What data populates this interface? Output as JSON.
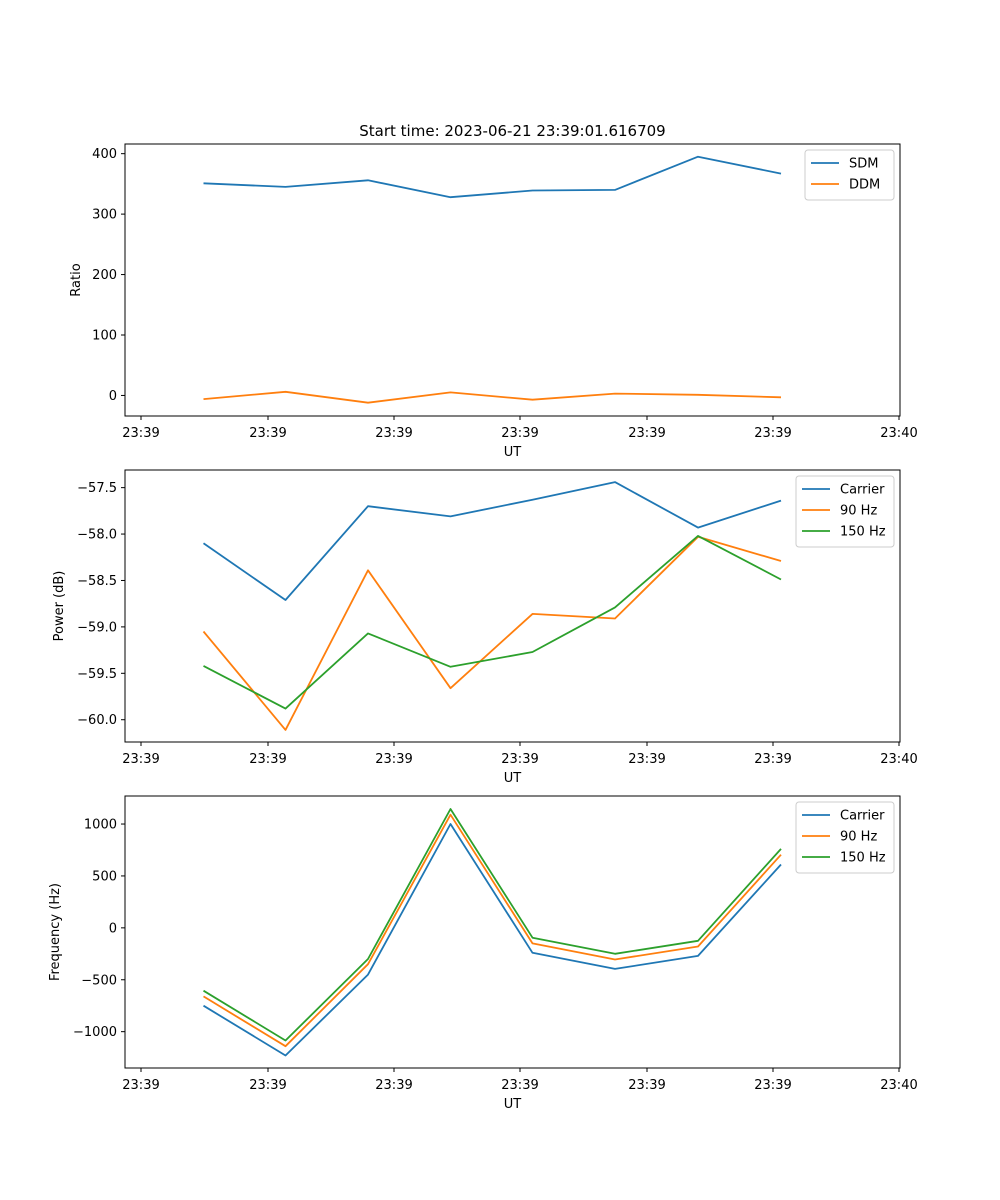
{
  "title": "Start time: 2023-06-21 23:39:01.616709",
  "chart_data": [
    {
      "type": "line",
      "xlabel": "UT",
      "ylabel": "Ratio",
      "ylim": [
        -34,
        416
      ],
      "yticks": [
        0,
        100,
        200,
        300,
        400
      ],
      "xticklabels": [
        "23:39",
        "23:39",
        "23:39",
        "23:39",
        "23:39",
        "23:39",
        "23:39",
        "23:40"
      ],
      "legend_position": "top-right",
      "series": [
        {
          "name": "SDM",
          "color": "#1f77b4",
          "values": [
            351,
            345,
            356,
            328,
            339,
            340,
            395,
            367
          ]
        },
        {
          "name": "DDM",
          "color": "#ff7f0e",
          "values": [
            -6,
            6,
            -12,
            5,
            -7,
            3,
            1,
            -3
          ]
        }
      ]
    },
    {
      "type": "line",
      "xlabel": "UT",
      "ylabel": "Power (dB)",
      "ylim": [
        -60.24,
        -57.31
      ],
      "yticks": [
        -57.5,
        -58.0,
        -58.5,
        -59.0,
        -59.5,
        -60.0
      ],
      "yticklabels": [
        "−57.5",
        "−58.0",
        "−58.5",
        "−59.0",
        "−59.5",
        "−60.0"
      ],
      "xticklabels": [
        "23:39",
        "23:39",
        "23:39",
        "23:39",
        "23:39",
        "23:39",
        "23:39",
        "23:40"
      ],
      "legend_position": "top-right",
      "series": [
        {
          "name": "Carrier",
          "color": "#1f77b4",
          "values": [
            -58.1,
            -58.71,
            -57.7,
            -57.81,
            -57.63,
            -57.44,
            -57.93,
            -57.64
          ]
        },
        {
          "name": "90 Hz",
          "color": "#ff7f0e",
          "values": [
            -59.05,
            -60.11,
            -58.39,
            -59.66,
            -58.86,
            -58.91,
            -58.03,
            -58.29
          ]
        },
        {
          "name": "150 Hz",
          "color": "#2ca02c",
          "values": [
            -59.42,
            -59.88,
            -59.07,
            -59.43,
            -59.27,
            -58.79,
            -58.02,
            -58.49
          ]
        }
      ]
    },
    {
      "type": "line",
      "xlabel": "UT",
      "ylabel": "Frequency (Hz)",
      "ylim": [
        -1350,
        1270
      ],
      "yticks": [
        1000,
        500,
        0,
        -500,
        -1000
      ],
      "yticklabels": [
        "1000",
        "500",
        "0",
        "−500",
        "−1000"
      ],
      "xticklabels": [
        "23:39",
        "23:39",
        "23:39",
        "23:39",
        "23:39",
        "23:39",
        "23:39",
        "23:40"
      ],
      "legend_position": "top-right",
      "series": [
        {
          "name": "Carrier",
          "color": "#1f77b4",
          "values": [
            -750,
            -1230,
            -450,
            1000,
            -240,
            -395,
            -270,
            610
          ]
        },
        {
          "name": "90 Hz",
          "color": "#ff7f0e",
          "values": [
            -660,
            -1140,
            -350,
            1090,
            -150,
            -305,
            -180,
            705
          ]
        },
        {
          "name": "150 Hz",
          "color": "#2ca02c",
          "values": [
            -605,
            -1085,
            -300,
            1145,
            -95,
            -250,
            -125,
            760
          ]
        }
      ]
    }
  ]
}
